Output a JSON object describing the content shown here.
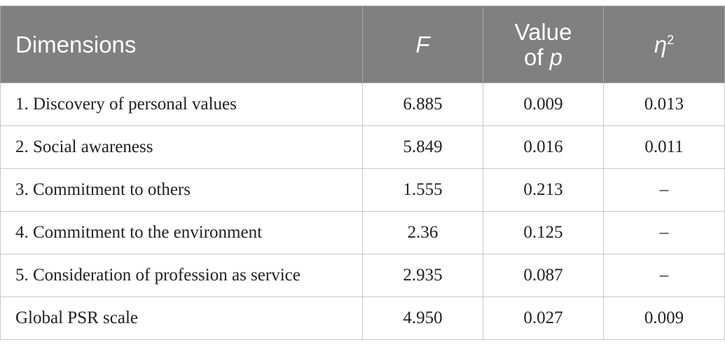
{
  "table": {
    "headers": {
      "dimensions": "Dimensions",
      "f": "F",
      "p_value_line1": "Value",
      "p_value_line2_prefix": "of ",
      "p_value_symbol": "p",
      "eta": "η",
      "eta_sup": "2"
    },
    "rows": [
      {
        "dimension": "1. Discovery of personal values",
        "f": "6.885",
        "p": "0.009",
        "eta2": "0.013"
      },
      {
        "dimension": "2. Social awareness",
        "f": "5.849",
        "p": "0.016",
        "eta2": "0.011"
      },
      {
        "dimension": "3. Commitment to others",
        "f": "1.555",
        "p": "0.213",
        "eta2": "–"
      },
      {
        "dimension": "4. Commitment to the environment",
        "f": "2.36",
        "p": "0.125",
        "eta2": "–"
      },
      {
        "dimension": "5. Consideration of profession as service",
        "f": "2.935",
        "p": "0.087",
        "eta2": "–"
      },
      {
        "dimension": "Global PSR scale",
        "f": "4.950",
        "p": "0.027",
        "eta2": "0.009"
      }
    ]
  }
}
